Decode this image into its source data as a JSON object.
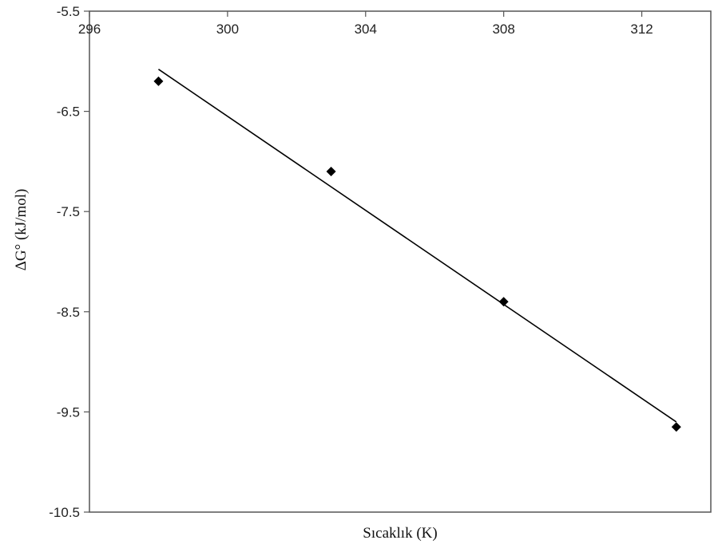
{
  "chart_data": {
    "type": "scatter",
    "xlabel": "Sıcaklık (K)",
    "ylabel": "ΔG° (kJ/mol)",
    "xlim": [
      296,
      314
    ],
    "ylim": [
      -10.5,
      -5.5
    ],
    "x_ticks": [
      296,
      300,
      304,
      308,
      312
    ],
    "y_ticks": [
      -5.5,
      -6.5,
      -7.5,
      -8.5,
      -9.5,
      -10.5
    ],
    "x_axis_position": "top",
    "grid": false,
    "legend": "none",
    "series": [
      {
        "x": [
          298,
          303,
          308,
          313
        ],
        "y": [
          -6.2,
          -7.1,
          -8.4,
          -9.65
        ],
        "marker": "diamond",
        "color": "#000000"
      }
    ],
    "trendline": {
      "type": "linear",
      "x": [
        298,
        313
      ],
      "y": [
        -6.08,
        -9.6
      ],
      "color": "#000000"
    }
  }
}
